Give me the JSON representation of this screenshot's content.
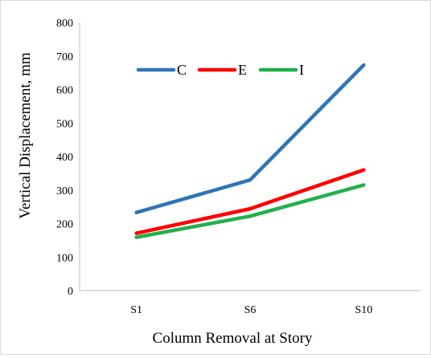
{
  "chart_data": {
    "type": "line",
    "categories": [
      "S1",
      "S6",
      "S10"
    ],
    "series": [
      {
        "name": "C",
        "color": "#2e75b6",
        "values": [
          233,
          330,
          673
        ]
      },
      {
        "name": "E",
        "color": "#ff0000",
        "values": [
          171,
          244,
          360
        ]
      },
      {
        "name": "I",
        "color": "#22b04c",
        "values": [
          159,
          222,
          315
        ]
      }
    ],
    "title": "",
    "xlabel": "Column Removal at Story",
    "ylabel": "Vertical Displacement,  mm",
    "ylim": [
      0,
      800
    ],
    "yticks": [
      "0",
      "100",
      "200",
      "300",
      "400",
      "500",
      "600",
      "700",
      "800"
    ],
    "grid": false,
    "legend": "top-left, inside plot, horizontal"
  }
}
